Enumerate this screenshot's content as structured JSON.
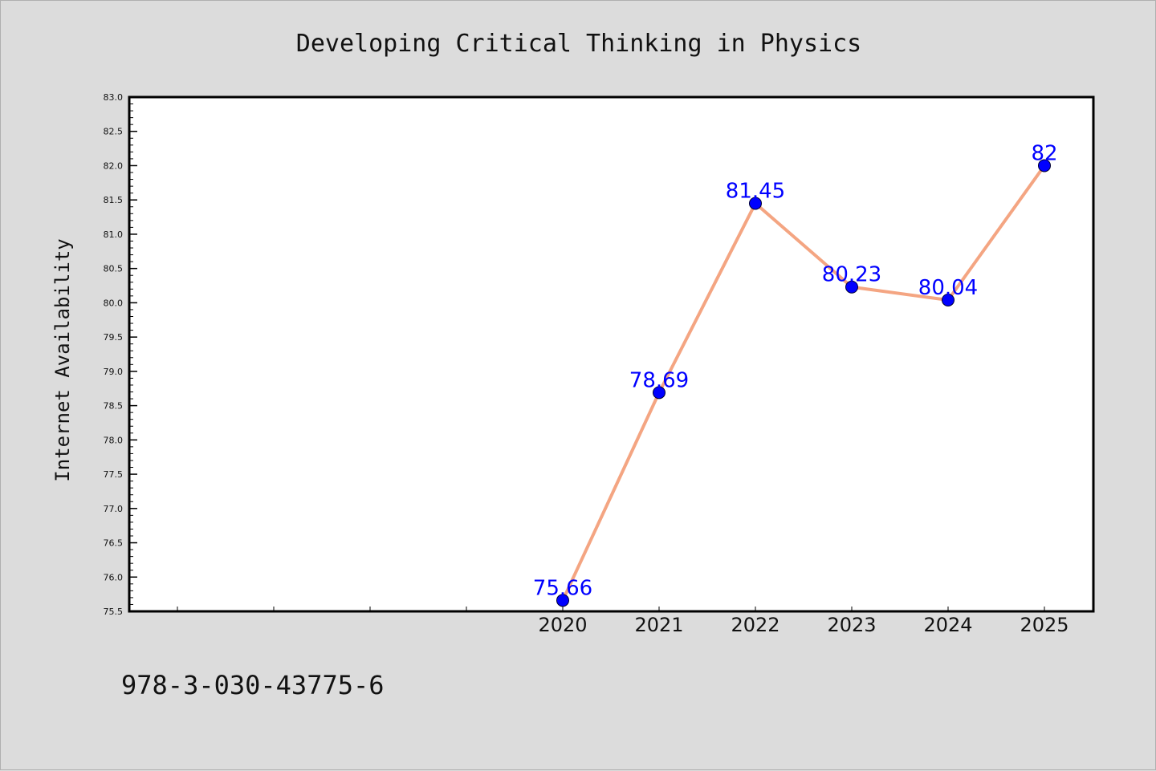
{
  "chart_data": {
    "type": "line",
    "title": "Developing Critical Thinking in Physics",
    "xlabel": "",
    "ylabel": "Internet Availability",
    "categories": [
      "2020",
      "2021",
      "2022",
      "2023",
      "2024",
      "2025"
    ],
    "series": [
      {
        "values": [
          75.66,
          78.69,
          81.45,
          80.23,
          80.04,
          82
        ]
      }
    ],
    "data_labels": [
      "75.66",
      "78.69",
      "81.45",
      "80.23",
      "80.04",
      "82"
    ],
    "ylim": [
      75.5,
      83.0
    ],
    "yticks": [
      "75.5",
      "76.0",
      "76.5",
      "77.0",
      "77.5",
      "78.0",
      "78.5",
      "79.0",
      "79.5",
      "80.0",
      "80.5",
      "81.0",
      "81.5",
      "82.0",
      "82.5",
      "83.0"
    ],
    "line_color": "#f4a582",
    "marker_color": "#0000ff",
    "label_color": "#0000ff",
    "background": "#dcdcdc",
    "plot_background": "#ffffff",
    "grid": false,
    "legend": "none"
  },
  "footer": {
    "text": "978-3-030-43775-6"
  }
}
